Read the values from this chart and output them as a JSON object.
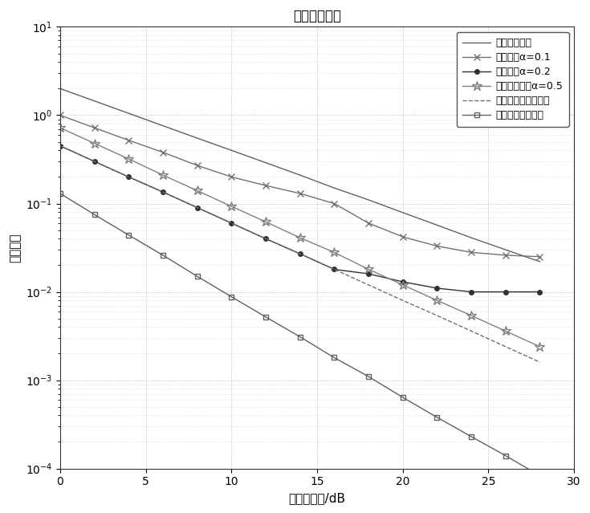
{
  "title": "均方误差曲线",
  "xlabel": "比特信噪比/dB",
  "ylabel": "均方误差",
  "xlim": [
    0,
    30
  ],
  "snr": [
    0,
    2,
    4,
    6,
    8,
    10,
    12,
    14,
    16,
    18,
    20,
    22,
    24,
    26,
    28
  ],
  "ls_values": [
    2.0,
    1.45,
    1.05,
    0.76,
    0.55,
    0.4,
    0.29,
    0.21,
    0.15,
    0.11,
    0.079,
    0.057,
    0.041,
    0.03,
    0.022
  ],
  "exp01_values": [
    1.0,
    0.72,
    0.52,
    0.38,
    0.27,
    0.2,
    0.16,
    0.13,
    0.1,
    0.06,
    0.042,
    0.033,
    0.028,
    0.026,
    0.025
  ],
  "exp02_values": [
    0.45,
    0.3,
    0.2,
    0.135,
    0.09,
    0.06,
    0.04,
    0.027,
    0.018,
    0.016,
    0.013,
    0.011,
    0.01,
    0.01,
    0.01
  ],
  "opt05_values": [
    0.72,
    0.48,
    0.32,
    0.21,
    0.14,
    0.093,
    0.062,
    0.041,
    0.028,
    0.018,
    0.012,
    0.008,
    0.0054,
    0.0036,
    0.0024
  ],
  "dft_values": [
    0.45,
    0.3,
    0.2,
    0.135,
    0.09,
    0.06,
    0.04,
    0.027,
    0.018,
    0.012,
    0.008,
    0.0054,
    0.0036,
    0.0024,
    0.0016
  ],
  "mmse_values": [
    0.13,
    0.075,
    0.044,
    0.026,
    0.015,
    0.0088,
    0.0052,
    0.0031,
    0.0018,
    0.0011,
    0.00064,
    0.00038,
    0.00023,
    0.00014,
    8.3e-05
  ],
  "legend": [
    "最小二乘算法",
    "指数平滑α=0.1",
    "指数平滑α=0.2",
    "最优指数平滑α=0.5",
    "离散傅立叶变换算法",
    "最小均方误差算法"
  ],
  "color_ls": "#606060",
  "color_exp01": "#707070",
  "color_exp02": "#303030",
  "color_opt05": "#808080",
  "color_dft": "#707070",
  "color_mmse": "#606060"
}
